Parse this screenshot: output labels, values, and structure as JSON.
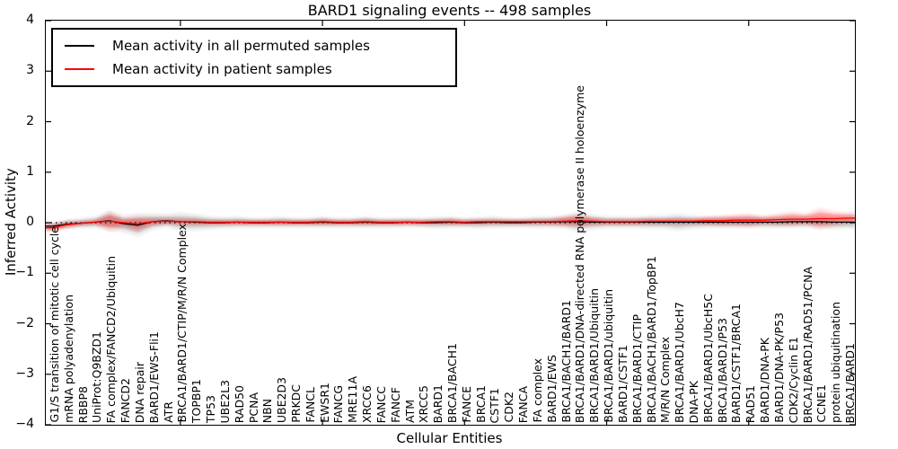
{
  "chart_data": {
    "type": "line",
    "title": "BARD1 signaling events -- 498 samples",
    "xlabel": "Cellular Entities",
    "ylabel": "Inferred Activity",
    "ylim": [
      -4,
      4
    ],
    "yticks": [
      4,
      3,
      2,
      1,
      0,
      -1,
      -2,
      -3,
      -4
    ],
    "xtick_marks_at": [
      9,
      19,
      29,
      39,
      49
    ],
    "grid": false,
    "legend_position": "upper left",
    "zero_line_style": "dotted",
    "categories": [
      "G1/S transition of mitotic cell cycle",
      "mRNA polyadenylation",
      "RBBP8",
      "UniProt:Q9BZD1",
      "FA complex/FANCD2/Ubiquitin",
      "FANCD2",
      "DNA repair",
      "BARD1/EWS-Fli1",
      "ATR",
      "BRCA1/BARD1/CTIP/M/R/N Complex",
      "TOPBP1",
      "TP53",
      "UBE2L3",
      "RAD50",
      "PCNA",
      "NBN",
      "UBE2D3",
      "PRKDC",
      "FANCL",
      "EWSR1",
      "FANCG",
      "MRE11A",
      "XRCC6",
      "FANCC",
      "FANCF",
      "ATM",
      "XRCC5",
      "BARD1",
      "BRCA1/BACH1",
      "FANCE",
      "BRCA1",
      "CSTF1",
      "CDK2",
      "FANCA",
      "FA complex",
      "BARD1/EWS",
      "BRCA1/BACH1/BARD1",
      "BRCA1/BARD1/DNA-directed RNA polymerase II holoenzyme",
      "BRCA1/BARD1/Ubiquitin",
      "BRCA1/BARD1/ubiquitin",
      "BARD1/CSTF1",
      "BRCA1/BARD1/CTIP",
      "BRCA1/BACH1/BARD1/TopBP1",
      "M/R/N Complex",
      "BRCA1/BARD1/UbcH7",
      "DNA-PK",
      "BRCA1/BARD1/UbcH5C",
      "BRCA1/BARD1/P53",
      "BARD1/CSTF1/BRCA1",
      "RAD51",
      "BARD1/DNA-PK",
      "BARD1/DNA-PK/P53",
      "CDK2/Cyclin E1",
      "BRCA1/BARD1/RAD51/PCNA",
      "CCNE1",
      "protein ubiquitination",
      "BRCA1/BARD1"
    ],
    "series": [
      {
        "name": "Mean activity in all permuted samples",
        "color": "#000000",
        "band_color": "#000000",
        "band_opacity": 0.16,
        "values": [
          -0.07,
          -0.03,
          -0.01,
          0.01,
          0.04,
          -0.02,
          -0.05,
          0.02,
          0.04,
          0.02,
          0.01,
          0.0,
          0.0,
          0.01,
          0.0,
          0.0,
          0.01,
          0.0,
          0.0,
          0.01,
          0.0,
          0.0,
          0.01,
          0.0,
          0.0,
          0.01,
          0.0,
          0.0,
          0.01,
          0.0,
          0.0,
          0.01,
          0.0,
          0.0,
          0.01,
          0.01,
          0.02,
          0.02,
          0.01,
          0.01,
          0.01,
          0.01,
          0.01,
          0.01,
          0.01,
          0.01,
          0.01,
          0.01,
          0.01,
          0.01,
          0.01,
          0.01,
          0.02,
          0.02,
          0.02,
          0.01,
          0.01
        ],
        "band_half_widths": [
          0.05,
          0.06,
          0.06,
          0.07,
          0.12,
          0.1,
          0.14,
          0.1,
          0.08,
          0.11,
          0.1,
          0.08,
          0.07,
          0.07,
          0.06,
          0.06,
          0.07,
          0.06,
          0.06,
          0.07,
          0.06,
          0.06,
          0.07,
          0.06,
          0.06,
          0.06,
          0.06,
          0.07,
          0.07,
          0.06,
          0.07,
          0.07,
          0.06,
          0.06,
          0.07,
          0.07,
          0.08,
          0.12,
          0.09,
          0.07,
          0.07,
          0.07,
          0.08,
          0.08,
          0.1,
          0.08,
          0.07,
          0.07,
          0.07,
          0.07,
          0.07,
          0.07,
          0.07,
          0.07,
          0.08,
          0.08,
          0.08
        ]
      },
      {
        "name": "Mean activity in patient samples",
        "color": "#ff0000",
        "band_color": "#ff0000",
        "band_opacity": 0.28,
        "values": [
          -0.1,
          -0.04,
          -0.01,
          0.01,
          0.03,
          0.0,
          -0.02,
          0.02,
          0.03,
          0.02,
          0.02,
          0.01,
          0.01,
          0.01,
          0.01,
          0.01,
          0.01,
          0.01,
          0.01,
          0.02,
          0.01,
          0.01,
          0.02,
          0.01,
          0.01,
          0.01,
          0.01,
          0.02,
          0.02,
          0.01,
          0.02,
          0.02,
          0.02,
          0.02,
          0.02,
          0.02,
          0.03,
          0.04,
          0.03,
          0.02,
          0.02,
          0.02,
          0.03,
          0.03,
          0.03,
          0.03,
          0.04,
          0.04,
          0.05,
          0.05,
          0.05,
          0.06,
          0.07,
          0.07,
          0.08,
          0.08,
          0.09
        ],
        "band_half_widths": [
          0.05,
          0.04,
          0.03,
          0.03,
          0.12,
          0.06,
          0.1,
          0.05,
          0.04,
          0.04,
          0.04,
          0.03,
          0.03,
          0.03,
          0.03,
          0.03,
          0.03,
          0.03,
          0.03,
          0.04,
          0.03,
          0.03,
          0.04,
          0.03,
          0.03,
          0.03,
          0.03,
          0.03,
          0.04,
          0.03,
          0.03,
          0.03,
          0.03,
          0.03,
          0.03,
          0.04,
          0.06,
          0.08,
          0.05,
          0.04,
          0.04,
          0.04,
          0.04,
          0.04,
          0.04,
          0.04,
          0.05,
          0.06,
          0.07,
          0.08,
          0.05,
          0.07,
          0.09,
          0.07,
          0.13,
          0.09,
          0.07
        ]
      }
    ]
  }
}
